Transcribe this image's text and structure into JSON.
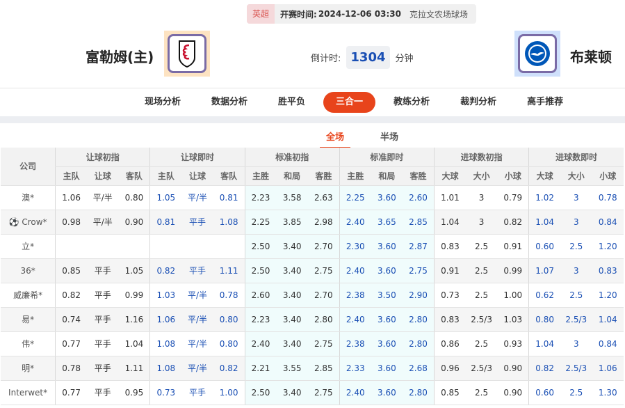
{
  "match": {
    "league": "英超",
    "kickoff_label": "开赛时间:",
    "kickoff": "2024-12-06 03:30",
    "venue": "克拉文农场球场"
  },
  "home": {
    "name": "富勒姆(主)"
  },
  "away": {
    "name": "布莱顿"
  },
  "countdown": {
    "label": "倒计时:",
    "value": "1304",
    "unit": "分钟"
  },
  "nav": [
    "现场分析",
    "数据分析",
    "胜平负",
    "三合一",
    "教练分析",
    "裁判分析",
    "高手推荐"
  ],
  "nav_active": 3,
  "subtabs": [
    "全场",
    "半场"
  ],
  "table": {
    "company_header": "公司",
    "groups": [
      "让球初指",
      "让球即时",
      "标准初指",
      "标准即时",
      "进球数初指",
      "进球数即时"
    ],
    "subheaders": [
      [
        "主队",
        "让球",
        "客队"
      ],
      [
        "主队",
        "让球",
        "客队"
      ],
      [
        "主胜",
        "和局",
        "客胜"
      ],
      [
        "主胜",
        "和局",
        "客胜"
      ],
      [
        "大球",
        "大小",
        "小球"
      ],
      [
        "大球",
        "大小",
        "小球"
      ]
    ],
    "rows": [
      {
        "company": "澳*",
        "v": [
          "1.06",
          "平/半",
          "0.80",
          "1.05",
          "平/半",
          "0.81",
          "2.23",
          "3.58",
          "2.63",
          "2.25",
          "3.60",
          "2.60",
          "1.01",
          "3",
          "0.79",
          "1.02",
          "3",
          "0.78"
        ]
      },
      {
        "company": "Crow*",
        "icon": "soccer-ball",
        "v": [
          "0.98",
          "平/半",
          "0.90",
          "0.81",
          "平手",
          "1.08",
          "2.25",
          "3.85",
          "2.98",
          "2.40",
          "3.65",
          "2.85",
          "1.04",
          "3",
          "0.82",
          "1.04",
          "3",
          "0.84"
        ]
      },
      {
        "company": "立*",
        "v": [
          "",
          "",
          "",
          "",
          "",
          "",
          "2.50",
          "3.40",
          "2.70",
          "2.30",
          "3.60",
          "2.87",
          "0.83",
          "2.5",
          "0.91",
          "0.60",
          "2.5",
          "1.20"
        ]
      },
      {
        "company": "36*",
        "v": [
          "0.85",
          "平手",
          "1.05",
          "0.82",
          "平手",
          "1.11",
          "2.50",
          "3.40",
          "2.75",
          "2.40",
          "3.60",
          "2.75",
          "0.91",
          "2.5",
          "0.99",
          "1.07",
          "3",
          "0.83"
        ]
      },
      {
        "company": "威廉希*",
        "v": [
          "0.82",
          "平手",
          "0.99",
          "1.03",
          "平/半",
          "0.78",
          "2.60",
          "3.40",
          "2.70",
          "2.38",
          "3.50",
          "2.90",
          "0.73",
          "2.5",
          "1.00",
          "0.62",
          "2.5",
          "1.20"
        ]
      },
      {
        "company": "易*",
        "v": [
          "0.74",
          "平手",
          "1.16",
          "1.06",
          "平/半",
          "0.80",
          "2.23",
          "3.40",
          "2.80",
          "2.40",
          "3.60",
          "2.80",
          "0.83",
          "2.5/3",
          "1.03",
          "0.80",
          "2.5/3",
          "1.04"
        ]
      },
      {
        "company": "伟*",
        "v": [
          "0.77",
          "平手",
          "1.04",
          "1.08",
          "平/半",
          "0.80",
          "2.40",
          "3.40",
          "2.75",
          "2.38",
          "3.60",
          "2.80",
          "0.86",
          "2.5",
          "0.93",
          "1.04",
          "3",
          "0.84"
        ]
      },
      {
        "company": "明*",
        "v": [
          "0.78",
          "平手",
          "1.11",
          "1.08",
          "平/半",
          "0.82",
          "2.21",
          "3.55",
          "2.85",
          "2.33",
          "3.60",
          "2.68",
          "0.96",
          "2.5/3",
          "0.90",
          "0.82",
          "2.5/3",
          "1.06"
        ]
      },
      {
        "company": "Interwet*",
        "v": [
          "0.77",
          "平手",
          "0.95",
          "0.73",
          "平手",
          "1.00",
          "2.50",
          "3.40",
          "2.75",
          "2.40",
          "3.60",
          "2.80",
          "0.85",
          "2.5",
          "0.90",
          "0.60",
          "2.5",
          "1.30"
        ]
      }
    ]
  },
  "colors": {
    "accent": "#e8441b",
    "live_value": "#1a4fb4",
    "standard_bg": "#f0fcfc"
  }
}
